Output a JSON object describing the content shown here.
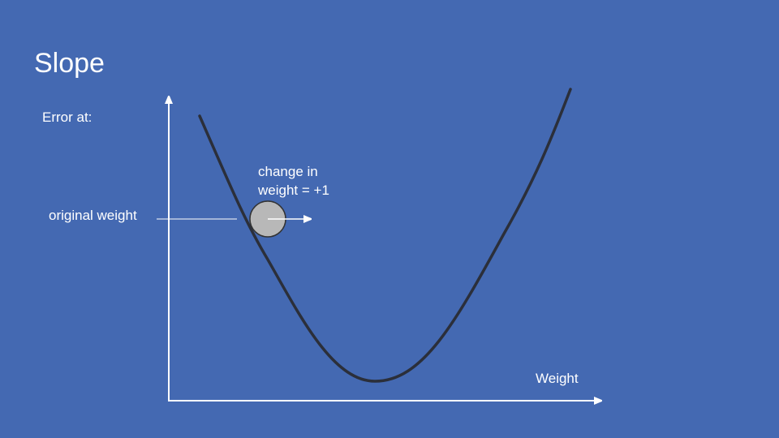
{
  "slide": {
    "title": "Slope",
    "y_axis_label": "Error at:",
    "x_axis_label": "Weight",
    "marker_label": "original weight",
    "change_label": {
      "line1": "change in",
      "line2": "weight = +1"
    }
  },
  "colors": {
    "background": "#4469b2",
    "text": "#ffffff",
    "curve": "#2b2f3a",
    "ball_fill": "#b8b8b8",
    "ball_stroke": "#333333"
  }
}
